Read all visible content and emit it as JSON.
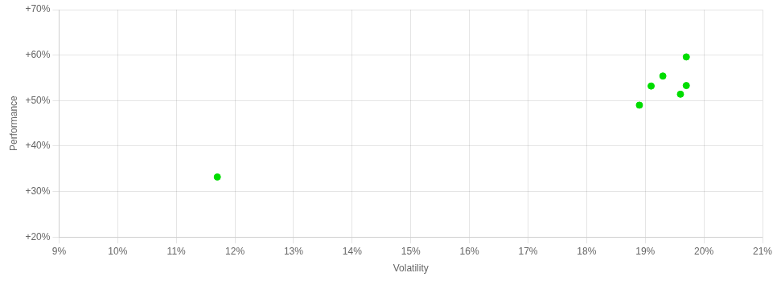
{
  "chart_data": {
    "type": "scatter",
    "xlabel": "Volatility",
    "ylabel": "Performance",
    "color": "#00dd00",
    "x": [
      0.117,
      0.197,
      0.193,
      0.191,
      0.197,
      0.196,
      0.189
    ],
    "values": [
      0.332,
      0.596,
      0.554,
      0.532,
      0.533,
      0.514,
      0.49
    ],
    "xlim": [
      0.09,
      0.21
    ],
    "ylim": [
      0.2,
      0.7
    ],
    "xticks": [
      {
        "value": 0.09,
        "label": "9%"
      },
      {
        "value": 0.1,
        "label": "10%"
      },
      {
        "value": 0.11,
        "label": "11%"
      },
      {
        "value": 0.12,
        "label": "12%"
      },
      {
        "value": 0.13,
        "label": "13%"
      },
      {
        "value": 0.14,
        "label": "14%"
      },
      {
        "value": 0.15,
        "label": "15%"
      },
      {
        "value": 0.16,
        "label": "16%"
      },
      {
        "value": 0.17,
        "label": "17%"
      },
      {
        "value": 0.18,
        "label": "18%"
      },
      {
        "value": 0.19,
        "label": "19%"
      },
      {
        "value": 0.2,
        "label": "20%"
      },
      {
        "value": 0.21,
        "label": "21%"
      }
    ],
    "yticks": [
      {
        "value": 0.2,
        "label": "+20%"
      },
      {
        "value": 0.3,
        "label": "+30%"
      },
      {
        "value": 0.4,
        "label": "+40%"
      },
      {
        "value": 0.5,
        "label": "+50%"
      },
      {
        "value": 0.6,
        "label": "+60%"
      },
      {
        "value": 0.7,
        "label": "+70%"
      }
    ],
    "grid": true
  }
}
